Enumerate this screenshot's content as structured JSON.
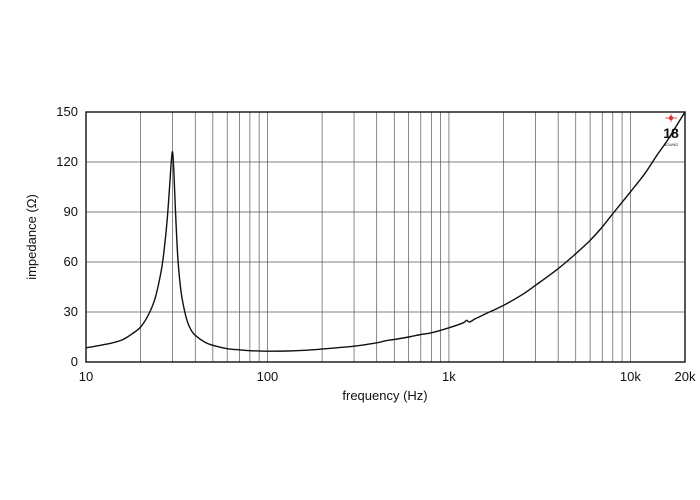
{
  "chart_data": {
    "type": "line",
    "title": "",
    "xlabel": "frequency (Hz)",
    "ylabel": "impedance (Ω)",
    "x_scale": "log",
    "xlim": [
      10,
      20000
    ],
    "ylim": [
      0,
      150
    ],
    "x_tick_labels": [
      {
        "value": 10,
        "label": "10"
      },
      {
        "value": 100,
        "label": "100"
      },
      {
        "value": 1000,
        "label": "1k"
      },
      {
        "value": 10000,
        "label": "10k"
      },
      {
        "value": 20000,
        "label": "20k"
      }
    ],
    "y_ticks": [
      0,
      30,
      60,
      90,
      120,
      150
    ],
    "grid": true,
    "line_color": "#111111",
    "series": [
      {
        "x": [
          10,
          12,
          14,
          16,
          18,
          20,
          22,
          24,
          26,
          27,
          28,
          29,
          29.5,
          30,
          30.5,
          31,
          32,
          33,
          34,
          36,
          38,
          40,
          45,
          50,
          60,
          70,
          80,
          100,
          130,
          160,
          200,
          300,
          400,
          450,
          500,
          600,
          700,
          800,
          1000,
          1200,
          1250,
          1300,
          1400,
          1600,
          2000,
          2500,
          3000,
          4000,
          5000,
          6000,
          7000,
          8000,
          10000,
          12000,
          14000,
          16000,
          18000,
          20000
        ],
        "y": [
          8.5,
          10,
          11.5,
          13.5,
          17,
          21,
          28,
          38,
          55,
          68,
          85,
          108,
          120,
          126,
          114,
          95,
          64,
          47,
          37,
          25,
          19,
          16,
          12,
          10,
          8,
          7.3,
          6.8,
          6.5,
          6.6,
          7,
          7.8,
          9.5,
          11.5,
          12.8,
          13.5,
          15,
          16.5,
          17.5,
          20.5,
          23.5,
          25,
          24,
          26,
          29,
          34,
          40,
          46,
          56,
          65,
          73,
          81,
          89,
          102,
          113,
          124,
          133,
          142,
          150
        ]
      }
    ]
  },
  "logo": {
    "number": "18",
    "subtext": "SOUND",
    "accent_color": "#e03030"
  }
}
